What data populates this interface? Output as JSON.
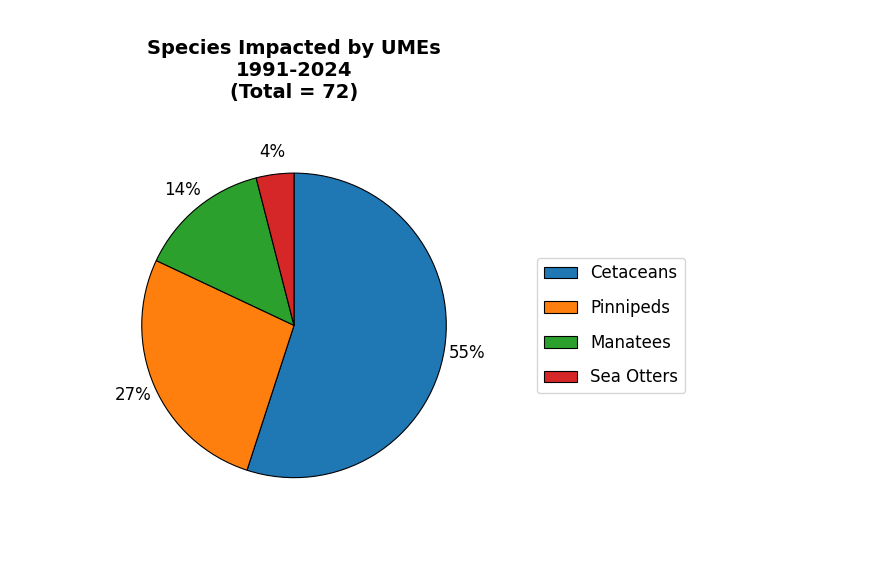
{
  "chart_data": {
    "type": "pie",
    "title": "Species Impacted by UMEs\n1991-2024\n(Total = 72)",
    "categories": [
      "Cetaceans",
      "Pinnipeds",
      "Manatees",
      "Sea Otters"
    ],
    "values": [
      55,
      27,
      14,
      4
    ],
    "value_labels": [
      "55%",
      "27%",
      "14%",
      "4%"
    ],
    "data_labels": true,
    "legend": "center left"
  }
}
